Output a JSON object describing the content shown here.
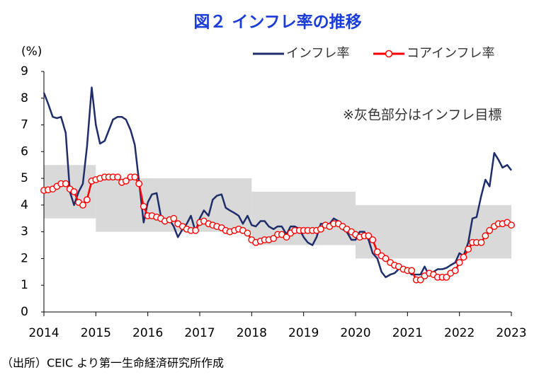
{
  "chart_data": {
    "type": "line",
    "title": "図２ インフレ率の推移",
    "y_label": "(%)",
    "annotation": "※灰色部分はインフレ目標",
    "source": "（出所）CEIC より第一生命経済研究所作成",
    "xlim": [
      2014,
      2023
    ],
    "ylim": [
      0,
      9
    ],
    "xticks": [
      2014,
      2015,
      2016,
      2017,
      2018,
      2019,
      2020,
      2021,
      2022,
      2023
    ],
    "yticks": [
      0,
      1,
      2,
      3,
      4,
      5,
      6,
      7,
      8,
      9
    ],
    "band_color": "#d9d9d9",
    "target_bands": [
      {
        "start": 2014,
        "end": 2015,
        "low": 3.5,
        "high": 5.5
      },
      {
        "start": 2015,
        "end": 2018,
        "low": 3,
        "high": 5
      },
      {
        "start": 2018,
        "end": 2020,
        "low": 2.5,
        "high": 4.5
      },
      {
        "start": 2020,
        "end": 2023,
        "low": 2,
        "high": 4
      }
    ],
    "x": [
      2014.0,
      2014.08,
      2014.17,
      2014.25,
      2014.33,
      2014.42,
      2014.5,
      2014.58,
      2014.67,
      2014.75,
      2014.83,
      2014.92,
      2015.0,
      2015.08,
      2015.17,
      2015.25,
      2015.33,
      2015.42,
      2015.5,
      2015.58,
      2015.67,
      2015.75,
      2015.83,
      2015.92,
      2016.0,
      2016.08,
      2016.17,
      2016.25,
      2016.33,
      2016.42,
      2016.5,
      2016.58,
      2016.67,
      2016.75,
      2016.83,
      2016.92,
      2017.0,
      2017.08,
      2017.17,
      2017.25,
      2017.33,
      2017.42,
      2017.5,
      2017.58,
      2017.67,
      2017.75,
      2017.83,
      2017.92,
      2018.0,
      2018.08,
      2018.17,
      2018.25,
      2018.33,
      2018.42,
      2018.5,
      2018.58,
      2018.67,
      2018.75,
      2018.83,
      2018.92,
      2019.0,
      2019.08,
      2019.17,
      2019.25,
      2019.33,
      2019.42,
      2019.5,
      2019.58,
      2019.67,
      2019.75,
      2019.83,
      2019.92,
      2020.0,
      2020.08,
      2020.17,
      2020.25,
      2020.33,
      2020.42,
      2020.5,
      2020.58,
      2020.67,
      2020.75,
      2020.83,
      2020.92,
      2021.0,
      2021.08,
      2021.17,
      2021.25,
      2021.33,
      2021.42,
      2021.5,
      2021.58,
      2021.67,
      2021.75,
      2021.83,
      2021.92,
      2022.0,
      2022.08,
      2022.17,
      2022.25,
      2022.33,
      2022.42,
      2022.5,
      2022.58,
      2022.67,
      2022.75,
      2022.83,
      2022.92,
      2023.0
    ],
    "series": [
      {
        "name": "インフレ率",
        "color": "#1f2d6b",
        "markers": false,
        "values": [
          8.2,
          7.8,
          7.3,
          7.25,
          7.3,
          6.7,
          4.5,
          4.0,
          4.5,
          4.8,
          6.2,
          8.4,
          7.0,
          6.3,
          6.4,
          6.8,
          7.2,
          7.3,
          7.3,
          7.2,
          6.8,
          6.25,
          4.9,
          3.35,
          4.1,
          4.4,
          4.45,
          3.6,
          3.3,
          3.45,
          3.2,
          2.8,
          3.1,
          3.3,
          3.6,
          3.0,
          3.5,
          3.8,
          3.6,
          4.2,
          4.35,
          4.4,
          3.9,
          3.8,
          3.7,
          3.6,
          3.3,
          3.6,
          3.25,
          3.2,
          3.4,
          3.4,
          3.2,
          3.1,
          3.2,
          3.2,
          2.9,
          3.2,
          3.2,
          3.1,
          2.8,
          2.6,
          2.5,
          2.8,
          3.3,
          3.3,
          3.3,
          3.5,
          3.4,
          3.1,
          3.0,
          2.7,
          2.7,
          3.0,
          3.0,
          2.7,
          2.2,
          2.0,
          1.5,
          1.3,
          1.4,
          1.45,
          1.6,
          1.7,
          1.55,
          1.4,
          1.4,
          1.4,
          1.7,
          1.35,
          1.5,
          1.6,
          1.6,
          1.65,
          1.75,
          1.85,
          2.2,
          2.1,
          2.6,
          3.5,
          3.55,
          4.35,
          4.95,
          4.7,
          5.95,
          5.7,
          5.4,
          5.5,
          5.3
        ]
      },
      {
        "name": "コアインフレ率",
        "color": "#ff0000",
        "markers": true,
        "values": [
          4.55,
          4.57,
          4.6,
          4.7,
          4.8,
          4.8,
          4.6,
          4.5,
          4.1,
          4.0,
          4.2,
          4.9,
          4.95,
          5.0,
          5.05,
          5.05,
          5.05,
          5.05,
          4.85,
          4.9,
          5.05,
          5.05,
          4.8,
          3.95,
          3.6,
          3.6,
          3.55,
          3.5,
          3.4,
          3.45,
          3.5,
          3.3,
          3.2,
          3.1,
          3.05,
          3.05,
          3.35,
          3.4,
          3.3,
          3.25,
          3.2,
          3.15,
          3.05,
          3.0,
          3.05,
          3.1,
          3.05,
          2.95,
          2.7,
          2.6,
          2.65,
          2.7,
          2.7,
          2.75,
          2.9,
          2.9,
          2.8,
          2.95,
          3.05,
          3.05,
          3.05,
          3.05,
          3.05,
          3.05,
          3.1,
          3.25,
          3.2,
          3.3,
          3.3,
          3.2,
          3.1,
          3.0,
          2.9,
          2.8,
          2.85,
          2.85,
          2.7,
          2.25,
          2.1,
          2.0,
          1.85,
          1.75,
          1.7,
          1.6,
          1.55,
          1.55,
          1.2,
          1.2,
          1.35,
          1.45,
          1.4,
          1.3,
          1.3,
          1.3,
          1.45,
          1.55,
          1.85,
          2.05,
          2.35,
          2.6,
          2.6,
          2.6,
          2.85,
          3.05,
          3.2,
          3.3,
          3.3,
          3.35,
          3.25
        ]
      }
    ]
  }
}
